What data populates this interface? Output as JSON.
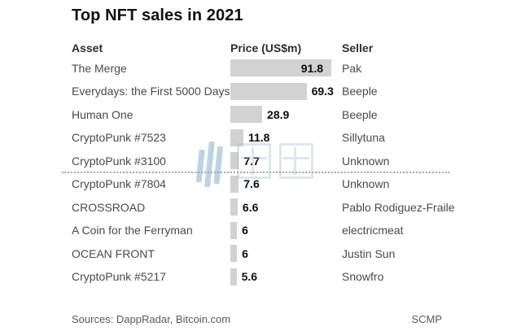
{
  "title": "Top NFT sales in 2021",
  "columns": {
    "asset": "Asset",
    "price": "Price (US$m)",
    "seller": "Seller"
  },
  "rows": [
    {
      "asset": "The Merge",
      "value": 91.8,
      "label": "91.8",
      "seller": "Pak",
      "label_inside": true
    },
    {
      "asset": "Everydays: the First 5000 Days",
      "value": 69.3,
      "label": "69.3",
      "seller": "Beeple",
      "label_inside": false
    },
    {
      "asset": "Human One",
      "value": 28.9,
      "label": "28.9",
      "seller": "Beeple",
      "label_inside": false
    },
    {
      "asset": "CryptoPunk #7523",
      "value": 11.8,
      "label": "11.8",
      "seller": "Sillytuna",
      "label_inside": false
    },
    {
      "asset": "CryptoPunk #3100",
      "value": 7.7,
      "label": "7.7",
      "seller": "Unknown",
      "label_inside": false
    },
    {
      "asset": "CryptoPunk #7804",
      "value": 7.6,
      "label": "7.6",
      "seller": "Unknown",
      "label_inside": false
    },
    {
      "asset": "CROSSROAD",
      "value": 6.6,
      "label": "6.6",
      "seller": "Pablo Rodiguez-Fraile",
      "label_inside": false
    },
    {
      "asset": "A Coin for the Ferryman",
      "value": 6,
      "label": "6",
      "seller": "electricmeat",
      "label_inside": false
    },
    {
      "asset": "OCEAN FRONT",
      "value": 6,
      "label": "6",
      "seller": "Justin Sun",
      "label_inside": false
    },
    {
      "asset": "CryptoPunk #5217",
      "value": 5.6,
      "label": "5.6",
      "seller": "Snowfro",
      "label_inside": false
    }
  ],
  "separator_after_row_index": 4,
  "footer": {
    "sources": "Sources: DappRadar, Bitcoin.com",
    "credit": "SCMP"
  },
  "watermark": {
    "text": "健动",
    "icon": "three-bars-logo"
  },
  "colors": {
    "bar": "#d2d2d2",
    "title_text": "#111111",
    "header_text": "#2e2e2e",
    "body_text": "#4a4a4a",
    "value_text": "#0d0d0d",
    "footer_text": "#595959",
    "dotted_line": "#a8a8a8",
    "watermark_blue": "#7ba7c9"
  },
  "chart_data": {
    "type": "bar",
    "orientation": "horizontal",
    "title": "Top NFT sales in 2021",
    "categories": [
      "The Merge",
      "Everydays: the First 5000 Days",
      "Human One",
      "CryptoPunk #7523",
      "CryptoPunk #3100",
      "CryptoPunk #7804",
      "CROSSROAD",
      "A Coin for the Ferryman",
      "OCEAN FRONT",
      "CryptoPunk #5217"
    ],
    "values": [
      91.8,
      69.3,
      28.9,
      11.8,
      7.7,
      7.6,
      6.6,
      6,
      6,
      5.6
    ],
    "value_labels": [
      "91.8",
      "69.3",
      "28.9",
      "11.8",
      "7.7",
      "7.6",
      "6.6",
      "6",
      "6",
      "5.6"
    ],
    "series_extra": [
      {
        "name": "Seller",
        "values": [
          "Pak",
          "Beeple",
          "Beeple",
          "Sillytuna",
          "Unknown",
          "Unknown",
          "Pablo Rodiguez-Fraile",
          "electricmeat",
          "Justin Sun",
          "Snowfro"
        ]
      }
    ],
    "xlabel": "Price (US$m)",
    "ylabel": "Asset",
    "xlim": [
      0,
      92
    ],
    "grid": false,
    "legend": false,
    "bar_color": "#d2d2d2",
    "annotations": [
      "dotted separator line between CryptoPunk #3100 and CryptoPunk #7804",
      "Sources: DappRadar, Bitcoin.com",
      "SCMP"
    ]
  }
}
